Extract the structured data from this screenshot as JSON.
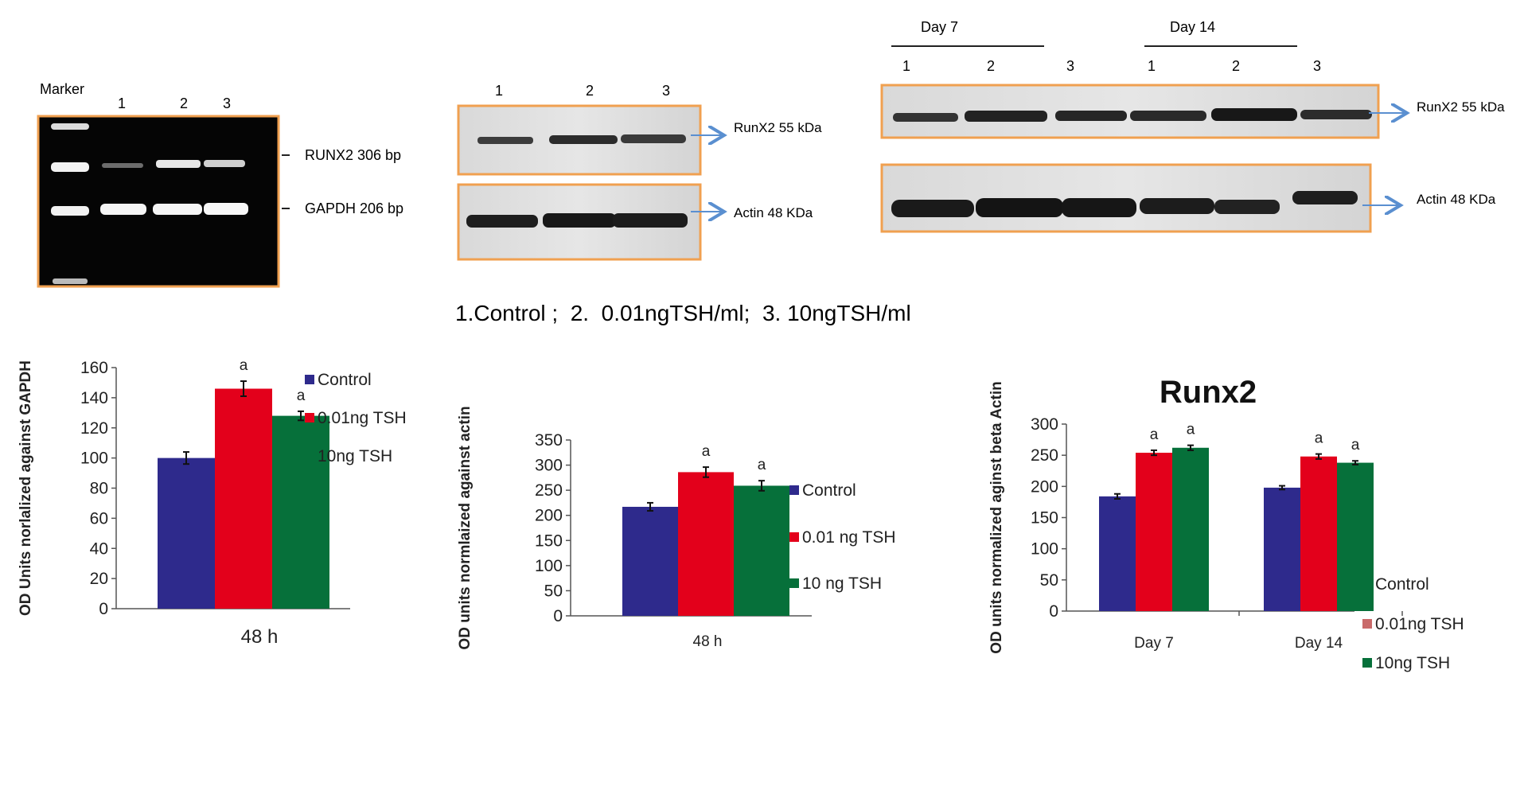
{
  "colors": {
    "control": "#2e2a8c",
    "tsh_low": "#e3001b",
    "tsh_high": "#06703a",
    "legend_low_alt": "#c96a6a",
    "panel_border": "#f0a050",
    "arrow": "#5a8fd0"
  },
  "gel": {
    "marker_label": "Marker",
    "lanes": [
      "1",
      "2",
      "3"
    ],
    "runx2_label": "RUNX2 306 bp",
    "gapdh_label": "GAPDH 206 bp"
  },
  "blot48": {
    "lanes": [
      "1",
      "2",
      "3"
    ],
    "runx2_label": "RunX2 55 kDa",
    "actin_label": "Actin 48 KDa"
  },
  "blotDays": {
    "day7": "Day 7",
    "day14": "Day 14",
    "lanes": [
      "1",
      "2",
      "3",
      "1",
      "2",
      "3"
    ],
    "runx2_label": "RunX2 55 kDa",
    "actin_label": "Actin 48 KDa"
  },
  "caption": "1.Control ;  2.  0.01ngTSH/ml;  3. 10ngTSH/ml",
  "chart_data": [
    {
      "type": "bar",
      "title": "",
      "xlabel": "48 h",
      "ylabel": "OD Units norlalized against  GAPDH",
      "categories": [
        "48 h"
      ],
      "ylim": [
        0,
        160
      ],
      "yticks": [
        0,
        20,
        40,
        60,
        80,
        100,
        120,
        140,
        160
      ],
      "series": [
        {
          "name": "Control",
          "values": [
            100
          ],
          "errors": [
            4
          ],
          "sig": [
            ""
          ]
        },
        {
          "name": "0.01ng TSH",
          "values": [
            146
          ],
          "errors": [
            5
          ],
          "sig": [
            "a"
          ]
        },
        {
          "name": "10ng TSH",
          "values": [
            128
          ],
          "errors": [
            3
          ],
          "sig": [
            "a"
          ]
        }
      ],
      "legend_position": "top"
    },
    {
      "type": "bar",
      "title": "",
      "xlabel": "48 h",
      "ylabel": "OD units normlaized against actin",
      "categories": [
        "48 h"
      ],
      "ylim": [
        0,
        350
      ],
      "yticks": [
        0,
        50,
        100,
        150,
        200,
        250,
        300,
        350
      ],
      "series": [
        {
          "name": "Control",
          "values": [
            217
          ],
          "errors": [
            8
          ],
          "sig": [
            ""
          ]
        },
        {
          "name": "0.01 ng  TSH",
          "values": [
            286
          ],
          "errors": [
            10
          ],
          "sig": [
            "a"
          ]
        },
        {
          "name": "10 ng TSH",
          "values": [
            259
          ],
          "errors": [
            10
          ],
          "sig": [
            "a"
          ]
        }
      ],
      "legend_position": "right"
    },
    {
      "type": "bar",
      "title": "Runx2",
      "xlabel": "",
      "ylabel": "OD units normalized aginst beta Actin",
      "categories": [
        "Day 7",
        "Day 14"
      ],
      "ylim": [
        0,
        300
      ],
      "yticks": [
        0,
        50,
        100,
        150,
        200,
        250,
        300
      ],
      "series": [
        {
          "name": "Control",
          "values": [
            184,
            198
          ],
          "errors": [
            4,
            3
          ],
          "sig": [
            "",
            ""
          ]
        },
        {
          "name": "0.01ng TSH",
          "values": [
            254,
            248
          ],
          "errors": [
            4,
            4
          ],
          "sig": [
            "a",
            "a"
          ]
        },
        {
          "name": "10ng TSH",
          "values": [
            262,
            238
          ],
          "errors": [
            4,
            3
          ],
          "sig": [
            "a",
            "a"
          ]
        }
      ],
      "legend_position": "right"
    }
  ]
}
